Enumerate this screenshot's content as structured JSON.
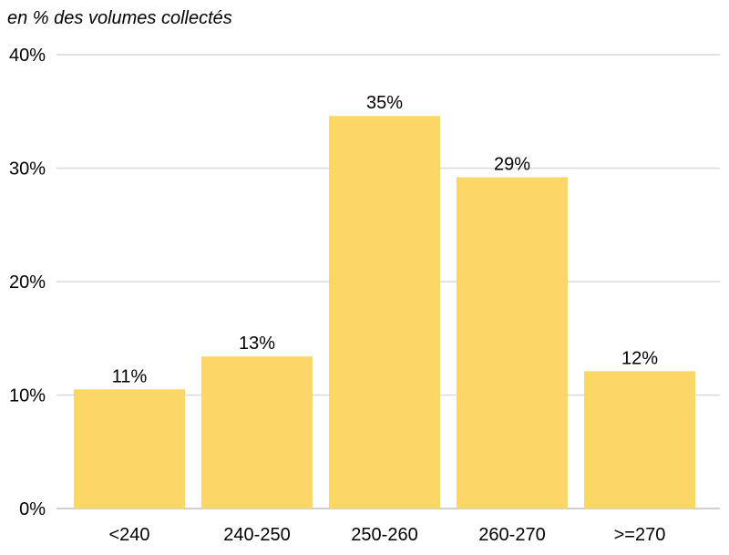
{
  "chart_data": {
    "type": "bar",
    "title": "",
    "ylabel": "en % des volumes collectés",
    "xlabel": "",
    "categories": [
      "<240",
      "240-250",
      "250-260",
      "260-270",
      ">=270"
    ],
    "values": [
      10.5,
      13.4,
      34.6,
      29.2,
      12.1
    ],
    "data_labels": [
      "11%",
      "13%",
      "35%",
      "29%",
      "12%"
    ],
    "ylim": [
      0,
      40
    ],
    "yticks": [
      0,
      10,
      20,
      30,
      40
    ],
    "ytick_labels": [
      "0%",
      "10%",
      "20%",
      "30%",
      "40%"
    ],
    "bar_color": "#fcd667",
    "grid": true,
    "legend": "none"
  }
}
